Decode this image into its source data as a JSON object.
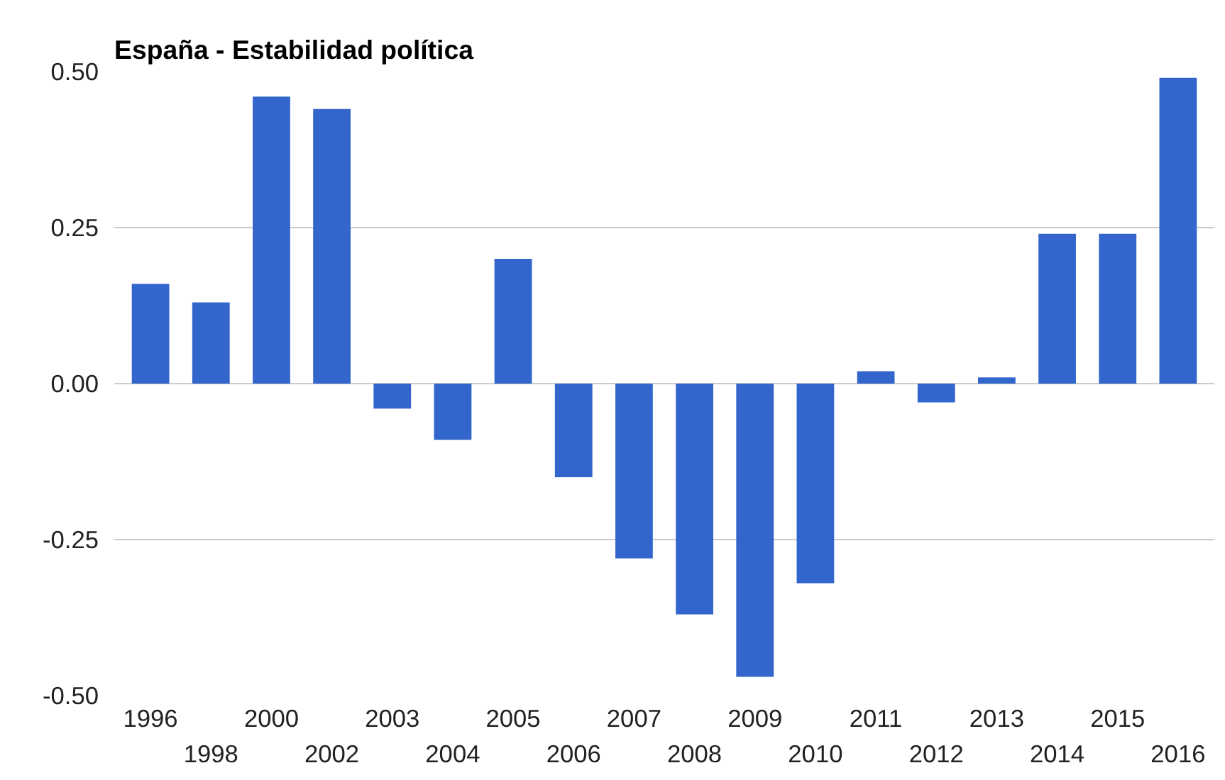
{
  "chart_data": {
    "type": "bar",
    "title": "España - Estabilidad política",
    "categories": [
      "1996",
      "1998",
      "2000",
      "2002",
      "2003",
      "2004",
      "2005",
      "2006",
      "2007",
      "2008",
      "2009",
      "2010",
      "2011",
      "2012",
      "2013",
      "2014",
      "2015",
      "2016"
    ],
    "values": [
      0.16,
      0.13,
      0.46,
      0.44,
      -0.04,
      -0.09,
      0.2,
      -0.15,
      -0.28,
      -0.37,
      -0.47,
      -0.32,
      0.02,
      -0.03,
      0.01,
      0.24,
      0.24,
      0.49
    ],
    "color": "#3366cc",
    "ylim": [
      -0.5,
      0.5
    ],
    "yticks": [
      {
        "value": -0.5,
        "label": "-0.50"
      },
      {
        "value": -0.25,
        "label": "-0.25"
      },
      {
        "value": 0,
        "label": "0.00"
      },
      {
        "value": 0.25,
        "label": "0.25"
      },
      {
        "value": 0.5,
        "label": "0.50"
      }
    ],
    "grid": "y"
  }
}
